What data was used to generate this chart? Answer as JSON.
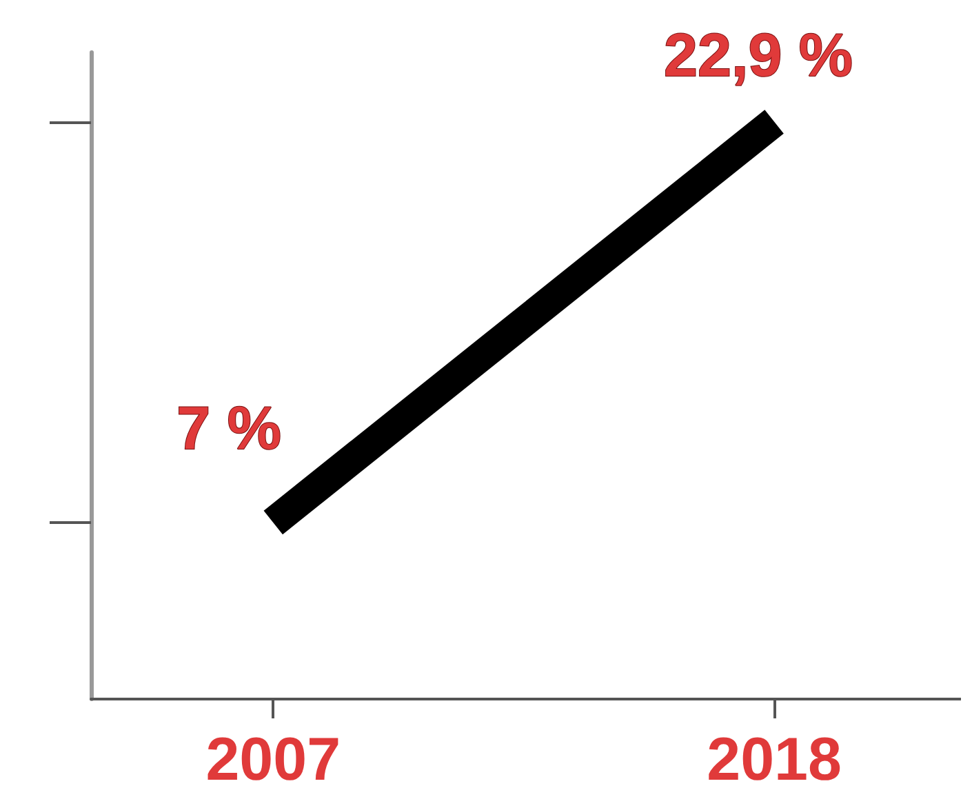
{
  "chart_data": {
    "type": "line",
    "x": [
      2007,
      2018
    ],
    "series": [
      {
        "color": "#000000",
        "values": [
          7,
          22.9
        ],
        "value_labels": [
          "7 %",
          "22,9 %"
        ]
      }
    ],
    "xlim": [
      2003,
      2022.1
    ],
    "xticks": [
      2007,
      2018
    ],
    "tick_labels": "x",
    "grid": false,
    "marker": "none",
    "line_style": "solid"
  }
}
